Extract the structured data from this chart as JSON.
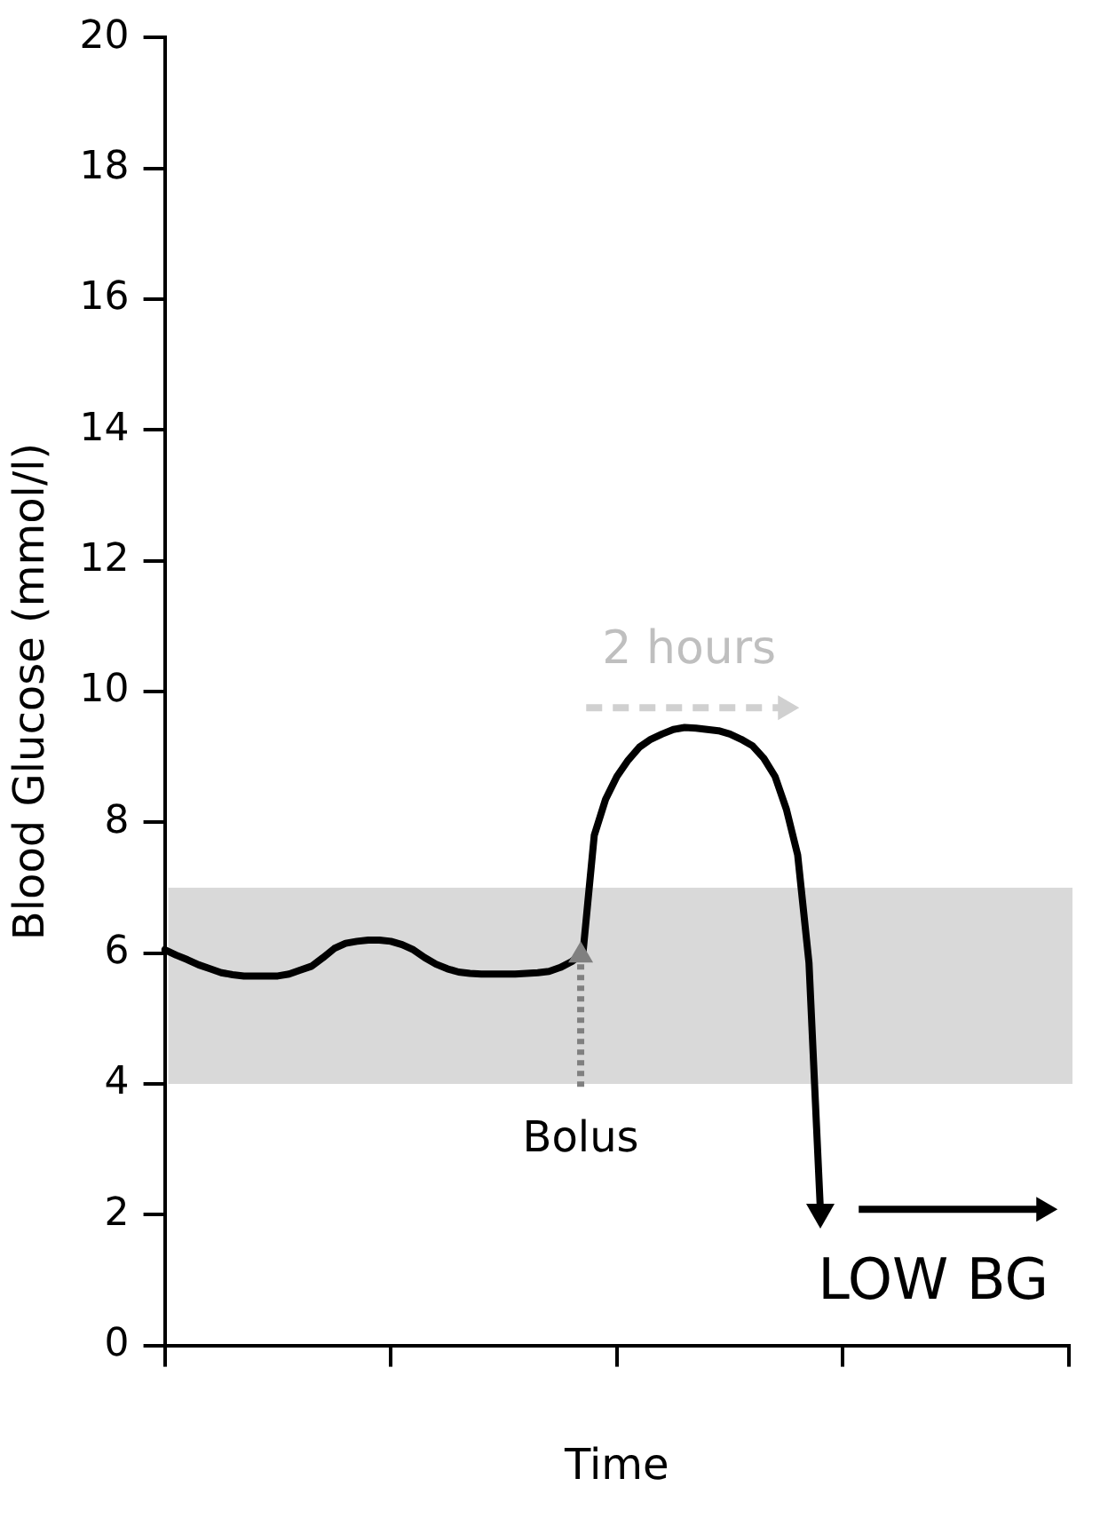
{
  "chart_data": {
    "type": "line",
    "xlabel": "Time",
    "ylabel": "Blood Glucose (mmol/l)",
    "categories": [
      null,
      null,
      null,
      null,
      null,
      null,
      null,
      null,
      null,
      null,
      null,
      null,
      null,
      null,
      null,
      null,
      null,
      null,
      null,
      null,
      null,
      null,
      null,
      null,
      null,
      null,
      null,
      null,
      null,
      null,
      null,
      null,
      null,
      null,
      null,
      null,
      null,
      null,
      null,
      null,
      null,
      null,
      null,
      null,
      null,
      null,
      null,
      null,
      null,
      null,
      null,
      null,
      null,
      null,
      null,
      null,
      null,
      null,
      null,
      null,
      null,
      null,
      null,
      null,
      null,
      null,
      null,
      null,
      null,
      null,
      null,
      null,
      null,
      null,
      null,
      null,
      null,
      null,
      null,
      null,
      null
    ],
    "ylim": [
      0,
      20
    ],
    "yticks": [
      0,
      2,
      4,
      6,
      8,
      10,
      12,
      14,
      16,
      18,
      20
    ],
    "grid": false,
    "legend": false,
    "marker": "none",
    "line_style": "solid",
    "series": [
      {
        "color": "#000000",
        "values": [
          6.05,
          5.97,
          5.9,
          5.82,
          5.76,
          5.7,
          5.67,
          5.65,
          5.65,
          5.65,
          5.65,
          5.68,
          5.74,
          5.8,
          5.93,
          6.07,
          6.15,
          6.18,
          6.2,
          6.2,
          6.18,
          6.13,
          6.05,
          5.93,
          5.83,
          5.76,
          5.71,
          5.69,
          5.68,
          5.68,
          5.68,
          5.68,
          5.69,
          5.7,
          5.72,
          5.78,
          5.87,
          6.0,
          7.8,
          8.35,
          8.7,
          8.95,
          9.15,
          9.27,
          9.35,
          9.42,
          9.45,
          9.44,
          9.42,
          9.4,
          9.35,
          9.27,
          9.17,
          8.98,
          8.7,
          8.2,
          7.5,
          5.85,
          2.1,
          null,
          null,
          null,
          null,
          null,
          null,
          null,
          null,
          null,
          null,
          null,
          null,
          null,
          null,
          null,
          null,
          null,
          null,
          null,
          null,
          null,
          null
        ]
      }
    ],
    "bands": [
      {
        "axis": "y",
        "from": 4,
        "to": 7,
        "color": "#d9d9d9"
      }
    ],
    "annotations": [
      "2 hours",
      "Bolus",
      "LOW BG"
    ]
  }
}
